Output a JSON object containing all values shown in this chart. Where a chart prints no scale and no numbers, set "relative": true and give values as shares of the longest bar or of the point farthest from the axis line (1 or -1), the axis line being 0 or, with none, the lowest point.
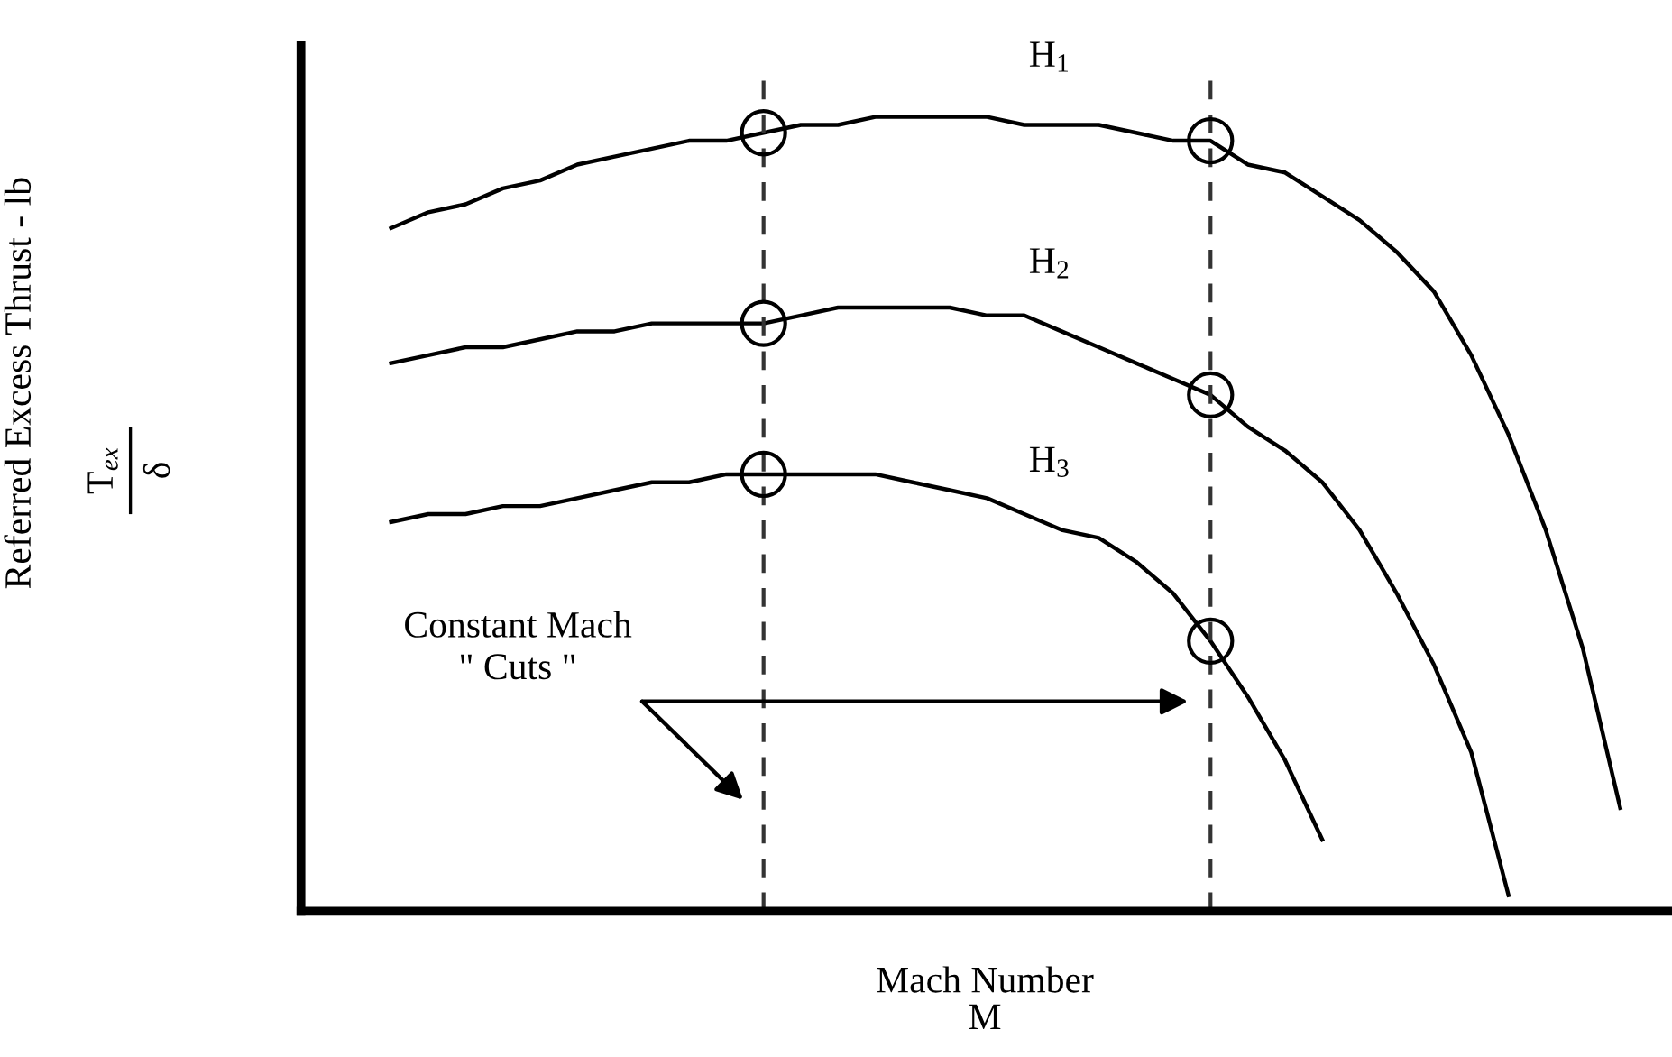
{
  "chart_data": {
    "type": "line",
    "relative": true,
    "xlabel": "Mach Number\nM",
    "ylabel": "Referred Excess Thrust - lb\nT$_{ex}$\nδ",
    "categories": [
      null,
      null,
      null,
      null,
      null,
      null,
      null,
      null,
      null,
      null,
      null,
      null,
      null,
      null,
      null,
      null,
      null,
      null,
      null,
      null,
      null,
      null,
      null,
      null,
      null,
      null,
      null,
      null,
      null,
      null,
      null,
      null,
      null,
      null,
      null
    ],
    "series": [
      {
        "type": "line",
        "name": "H$_{1}$",
        "color": "#000000",
        "values": [
          0.86,
          0.88,
          0.89,
          0.91,
          0.92,
          0.94,
          0.95,
          0.96,
          0.97,
          0.97,
          0.98,
          0.99,
          0.99,
          1.0,
          1.0,
          1.0,
          1.0,
          0.99,
          0.99,
          0.99,
          0.98,
          0.97,
          0.97,
          0.94,
          0.93,
          0.9,
          0.87,
          0.83,
          0.78,
          0.7,
          0.6,
          0.48,
          0.33,
          0.13,
          null
        ]
      },
      {
        "type": "line",
        "name": "H$_{2}$",
        "color": "#000000",
        "values": [
          0.69,
          0.7,
          0.71,
          0.71,
          0.72,
          0.73,
          0.73,
          0.74,
          0.74,
          0.74,
          0.74,
          0.75,
          0.76,
          0.76,
          0.76,
          0.76,
          0.75,
          0.75,
          0.73,
          0.71,
          0.69,
          0.67,
          0.65,
          0.61,
          0.58,
          0.54,
          0.48,
          0.4,
          0.31,
          0.2,
          0.02,
          null,
          null,
          null,
          null
        ]
      },
      {
        "type": "line",
        "name": "H$_{3}$",
        "color": "#000000",
        "values": [
          0.49,
          0.5,
          0.5,
          0.51,
          0.51,
          0.52,
          0.53,
          0.54,
          0.54,
          0.55,
          0.55,
          0.55,
          0.55,
          0.55,
          0.54,
          0.53,
          0.52,
          0.5,
          0.48,
          0.47,
          0.44,
          0.4,
          0.34,
          0.27,
          0.19,
          0.09,
          null,
          null,
          null,
          null,
          null,
          null,
          null,
          null,
          null
        ]
      }
    ],
    "annotations": [
      "Constant Mach\n\" Cuts \""
    ],
    "line_style": "solid",
    "marker": "none"
  }
}
